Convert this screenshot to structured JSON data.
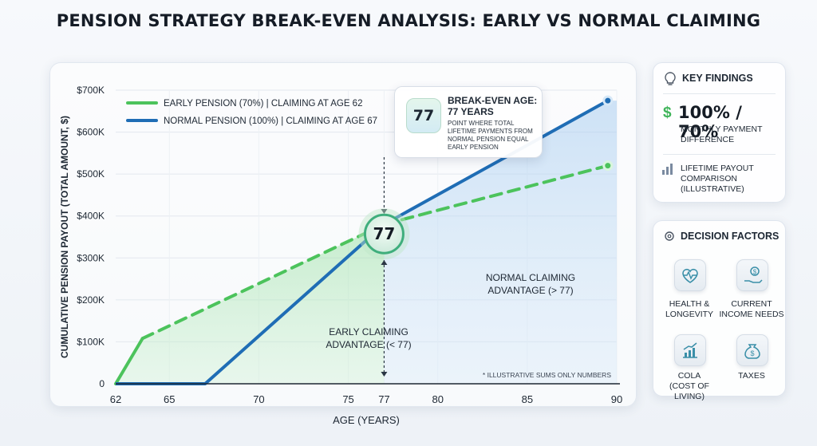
{
  "title": "PENSION STRATEGY BREAK-EVEN ANALYSIS: EARLY VS NORMAL CLAIMING",
  "chart_data": {
    "type": "line",
    "title": "PENSION STRATEGY BREAK-EVEN ANALYSIS: EARLY VS NORMAL CLAIMING",
    "xlabel": "AGE (YEARS)",
    "ylabel": "CUMULATIVE PENSION PAYOUT (TOTAL AMOUNT, $)",
    "xlim": [
      62,
      90
    ],
    "ylim": [
      0,
      700000
    ],
    "x_ticks": [
      62,
      65,
      70,
      75,
      77,
      80,
      85,
      90
    ],
    "y_ticks": [
      {
        "value": 0,
        "label": "0"
      },
      {
        "value": 100000,
        "label": "$100K"
      },
      {
        "value": 200000,
        "label": "$200K"
      },
      {
        "value": 300000,
        "label": "$300K"
      },
      {
        "value": 400000,
        "label": "$400K"
      },
      {
        "value": 500000,
        "label": "$500K"
      },
      {
        "value": 600000,
        "label": "$600K"
      },
      {
        "value": 700000,
        "label": "$700K"
      }
    ],
    "grid": true,
    "legend_position": "top-left",
    "series": [
      {
        "name": "EARLY PENSION (70%) | CLAIMING AT AGE 62",
        "color": "#4cc35c",
        "x": [
          62,
          63.5,
          77,
          89.5
        ],
        "y": [
          0,
          108000,
          380000,
          520000
        ]
      },
      {
        "name": "NORMAL PENSION (100%) | CLAIMING AT AGE 67",
        "color": "#1f6db5",
        "x": [
          62,
          67,
          77,
          89.5
        ],
        "y": [
          0,
          0,
          380000,
          675000
        ]
      }
    ],
    "break_even": {
      "age": 77,
      "label": "77"
    },
    "annotations": {
      "callout_value": "77",
      "callout_title": "BREAK-EVEN AGE:",
      "callout_subtitle": "77 YEARS",
      "callout_desc": "POINT WHERE TOTAL LIFETIME PAYMENTS FROM NORMAL PENSION EQUAL EARLY PENSION",
      "early_region_line1": "EARLY CLAIMING",
      "early_region_line2": "ADVANTAGE (< 77)",
      "normal_region_line1": "NORMAL CLAIMING",
      "normal_region_line2": "ADVANTAGE (> 77)",
      "footnote": "* ILLUSTRATIVE SUMS ONLY NUMBERS"
    }
  },
  "key_findings": {
    "title": "KEY FINDINGS",
    "headline": "100% / 70%",
    "headline_label": "MONTHLY PAYMENT DIFFERENCE",
    "item_label": "LIFETIME PAYOUT COMPARISON (ILLUSTRATIVE)",
    "icon": "lightbulb-icon"
  },
  "decision_factors": {
    "title": "DECISION FACTORS",
    "items": [
      {
        "label_1": "HEALTH &",
        "label_2": "LONGEVITY",
        "icon": "heart-pulse-icon"
      },
      {
        "label_1": "CURRENT",
        "label_2": "INCOME NEEDS",
        "icon": "hand-coin-icon"
      },
      {
        "label_1": "COLA",
        "label_2": "(COST OF LIVING)",
        "icon": "growth-chart-icon"
      },
      {
        "label_1": "TAXES",
        "label_2": "",
        "icon": "money-bag-icon"
      }
    ]
  }
}
